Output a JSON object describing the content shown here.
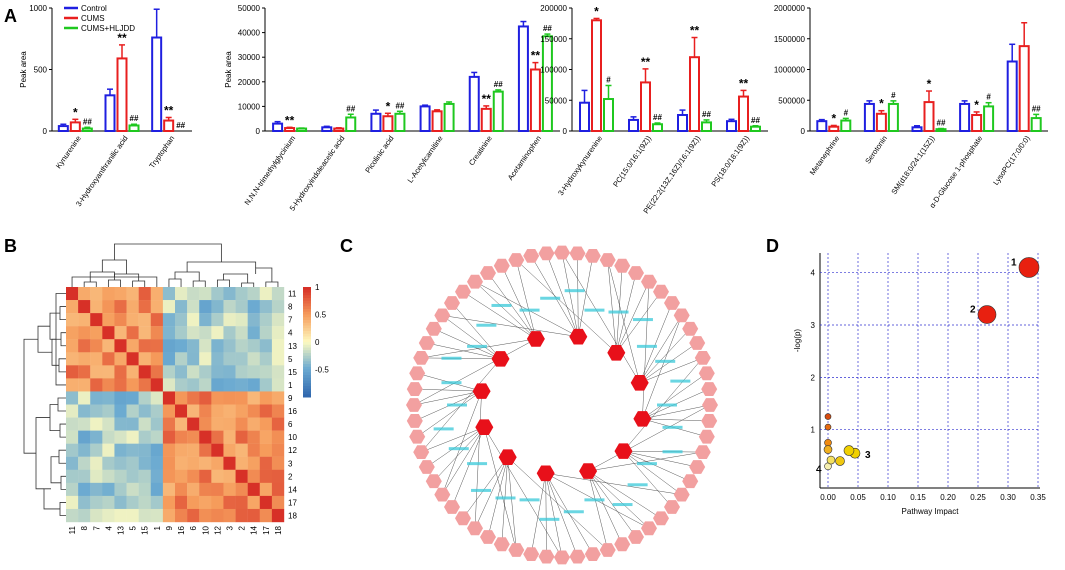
{
  "panels": {
    "a": "A",
    "b": "B",
    "c": "C",
    "d": "D"
  },
  "legend": {
    "items": [
      {
        "label": "Control",
        "color": "#1f1fe0"
      },
      {
        "label": "CUMS",
        "color": "#e81f1f"
      },
      {
        "label": "CUMS+HLJDD",
        "color": "#1fc81f"
      }
    ]
  },
  "chart_data": [
    {
      "type": "bar",
      "ylabel": "Peak area",
      "ylim": [
        0,
        1000
      ],
      "yticks": [
        0,
        500,
        1000
      ],
      "categories": [
        "Kynurenine",
        "3-Hydroxyanthranilic acid",
        "Tryptophan"
      ],
      "series": [
        {
          "name": "Control",
          "values": [
            40,
            290,
            760
          ],
          "errors": [
            15,
            50,
            230
          ]
        },
        {
          "name": "CUMS",
          "values": [
            70,
            590,
            85
          ],
          "errors": [
            25,
            110,
            25
          ]
        },
        {
          "name": "CUMS+HLJDD",
          "values": [
            20,
            45,
            0
          ],
          "errors": [
            10,
            10,
            0
          ]
        }
      ],
      "annotations": [
        {
          "category": 0,
          "series": 1,
          "text": "*"
        },
        {
          "category": 0,
          "series": 2,
          "text": "##"
        },
        {
          "category": 1,
          "series": 1,
          "text": "**"
        },
        {
          "category": 1,
          "series": 2,
          "text": "##"
        },
        {
          "category": 2,
          "series": 1,
          "text": "**"
        },
        {
          "category": 2,
          "series": 2,
          "text": "##"
        }
      ]
    },
    {
      "type": "bar",
      "ylabel": "Peak area",
      "ylim": [
        0,
        50000
      ],
      "yticks": [
        0,
        10000,
        20000,
        30000,
        40000,
        50000
      ],
      "categories": [
        "N,N,N-trimethylglycinium",
        "5-Hydroxyindoleacetic acid",
        "Picolinic acid",
        "L-Acetylcarnitine",
        "Creatinine",
        "Acetaminophen"
      ],
      "series": [
        {
          "name": "Control",
          "values": [
            3000,
            1500,
            7000,
            10000,
            22000,
            42500
          ],
          "errors": [
            800,
            400,
            1500,
            500,
            1800,
            2000
          ]
        },
        {
          "name": "CUMS",
          "values": [
            1200,
            1000,
            6000,
            8000,
            9000,
            25000
          ],
          "errors": [
            300,
            300,
            1200,
            600,
            1200,
            2800
          ]
        },
        {
          "name": "CUMS+HLJDD",
          "values": [
            1000,
            5500,
            7000,
            11000,
            16000,
            38500
          ],
          "errors": [
            200,
            1300,
            1000,
            800,
            700,
            900
          ]
        }
      ],
      "annotations": [
        {
          "category": 0,
          "series": 1,
          "text": "**"
        },
        {
          "category": 1,
          "series": 2,
          "text": "##"
        },
        {
          "category": 2,
          "series": 1,
          "text": "*"
        },
        {
          "category": 2,
          "series": 2,
          "text": "##"
        },
        {
          "category": 4,
          "series": 1,
          "text": "**"
        },
        {
          "category": 4,
          "series": 2,
          "text": "##"
        },
        {
          "category": 5,
          "series": 1,
          "text": "**"
        },
        {
          "category": 5,
          "series": 2,
          "text": "##"
        }
      ]
    },
    {
      "type": "bar",
      "ylabel": "",
      "ylim": [
        0,
        200000
      ],
      "yticks": [
        0,
        50000,
        100000,
        150000,
        200000
      ],
      "categories": [
        "3-Hydroxykynurenine",
        "PC(15:0/16:1(9Z))",
        "PE(22:2(13Z,16Z)/16:1(9Z))",
        "PS(18:0/18:1(9Z))"
      ],
      "series": [
        {
          "name": "Control",
          "values": [
            46000,
            18000,
            26000,
            16000
          ],
          "errors": [
            20000,
            5000,
            8000,
            3000
          ]
        },
        {
          "name": "CUMS",
          "values": [
            180000,
            79000,
            120000,
            56000
          ],
          "errors": [
            3000,
            22000,
            32000,
            10000
          ]
        },
        {
          "name": "CUMS+HLJDD",
          "values": [
            52000,
            11000,
            14000,
            7000
          ],
          "errors": [
            22000,
            2000,
            4000,
            1500
          ]
        }
      ],
      "annotations": [
        {
          "category": 0,
          "series": 1,
          "text": "*"
        },
        {
          "category": 0,
          "series": 2,
          "text": "#"
        },
        {
          "category": 1,
          "series": 1,
          "text": "**"
        },
        {
          "category": 1,
          "series": 2,
          "text": "##"
        },
        {
          "category": 2,
          "series": 1,
          "text": "**"
        },
        {
          "category": 2,
          "series": 2,
          "text": "##"
        },
        {
          "category": 3,
          "series": 1,
          "text": "**"
        },
        {
          "category": 3,
          "series": 2,
          "text": "##"
        }
      ]
    },
    {
      "type": "bar",
      "ylabel": "",
      "ylim": [
        0,
        2000000
      ],
      "yticks": [
        0,
        500000,
        1000000,
        1500000,
        2000000
      ],
      "categories": [
        "Metanephrine",
        "Serotonin",
        "SM(d18:0/24:1(15Z))",
        "α-D-Glucose 1-phosphate",
        "LysoPC(17:0/0:0)"
      ],
      "series": [
        {
          "name": "Control",
          "values": [
            160000,
            440000,
            60000,
            440000,
            1130000
          ],
          "errors": [
            25000,
            50000,
            25000,
            50000,
            280000
          ]
        },
        {
          "name": "CUMS",
          "values": [
            70000,
            280000,
            470000,
            260000,
            1380000
          ],
          "errors": [
            20000,
            50000,
            180000,
            50000,
            380000
          ]
        },
        {
          "name": "CUMS+HLJDD",
          "values": [
            170000,
            440000,
            30000,
            400000,
            210000
          ],
          "errors": [
            35000,
            50000,
            10000,
            60000,
            60000
          ]
        }
      ],
      "annotations": [
        {
          "category": 0,
          "series": 1,
          "text": "*"
        },
        {
          "category": 0,
          "series": 2,
          "text": "#"
        },
        {
          "category": 1,
          "series": 1,
          "text": "*"
        },
        {
          "category": 1,
          "series": 2,
          "text": "#"
        },
        {
          "category": 2,
          "series": 1,
          "text": "*"
        },
        {
          "category": 2,
          "series": 2,
          "text": "##"
        },
        {
          "category": 3,
          "series": 1,
          "text": "*"
        },
        {
          "category": 3,
          "series": 2,
          "text": "#"
        },
        {
          "category": 4,
          "series": 2,
          "text": "##"
        }
      ]
    },
    {
      "type": "heatmap",
      "row_labels": [
        "11",
        "8",
        "7",
        "4",
        "13",
        "5",
        "15",
        "1",
        "9",
        "16",
        "6",
        "10",
        "12",
        "3",
        "2",
        "14",
        "17",
        "18"
      ],
      "col_labels": [
        "11",
        "8",
        "7",
        "4",
        "13",
        "5",
        "15",
        "1",
        "9",
        "16",
        "6",
        "10",
        "12",
        "3",
        "2",
        "14",
        "17",
        "18"
      ],
      "colorbar": {
        "min": -1,
        "max": 1,
        "ticks": [
          "1",
          "0.5",
          "0",
          "-0.5"
        ]
      },
      "clusters": [
        [
          0,
          7
        ],
        [
          8,
          17
        ]
      ]
    },
    {
      "type": "scatter",
      "xlabel": "Pathway Impact",
      "ylabel": "-log(p)",
      "xlim": [
        0,
        0.35
      ],
      "ylim": [
        0,
        4.3
      ],
      "xticks": [
        "0.00",
        "0.05",
        "0.10",
        "0.15",
        "0.20",
        "0.25",
        "0.30",
        "0.35"
      ],
      "yticks": [
        "1",
        "2",
        "3",
        "4"
      ],
      "points": [
        {
          "x": 0.335,
          "y": 4.1,
          "size": 10,
          "color": "#e82010",
          "label": "1"
        },
        {
          "x": 0.265,
          "y": 3.2,
          "size": 9,
          "color": "#e82010",
          "label": "2"
        },
        {
          "x": 0.045,
          "y": 0.55,
          "size": 5,
          "color": "#f0d000",
          "label": "3"
        },
        {
          "x": 0.0,
          "y": 0.3,
          "size": 3.5,
          "color": "#f6f0b0",
          "label": "4"
        },
        {
          "x": 0.0,
          "y": 1.25,
          "size": 3,
          "color": "#d84c10",
          "label": ""
        },
        {
          "x": 0.0,
          "y": 1.05,
          "size": 3,
          "color": "#e86a10",
          "label": ""
        },
        {
          "x": 0.0,
          "y": 0.75,
          "size": 3.5,
          "color": "#f08a10",
          "label": ""
        },
        {
          "x": 0.0,
          "y": 0.62,
          "size": 4,
          "color": "#f0b020",
          "label": ""
        },
        {
          "x": 0.02,
          "y": 0.4,
          "size": 4.5,
          "color": "#f0c810",
          "label": ""
        },
        {
          "x": 0.035,
          "y": 0.6,
          "size": 5,
          "color": "#f0d000",
          "label": ""
        },
        {
          "x": 0.005,
          "y": 0.42,
          "size": 4,
          "color": "#f4e060",
          "label": ""
        }
      ]
    }
  ]
}
